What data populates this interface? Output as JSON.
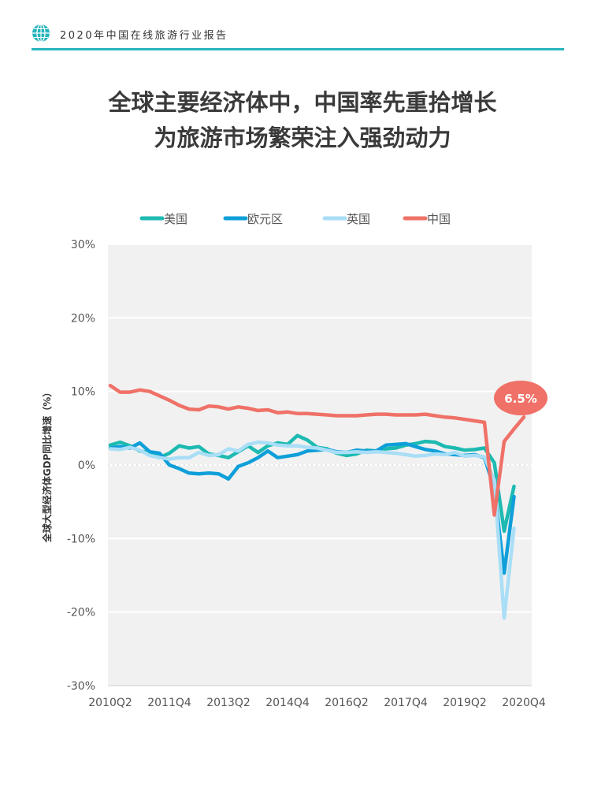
{
  "header": {
    "report_title": "2020年中国在线旅游行业报告",
    "icon": "globe-icon",
    "rule_color": "#27b5bd"
  },
  "title": {
    "line1": "全球主要经济体中，中国率先重拾增长",
    "line2": "为旅游市场繁荣注入强劲动力"
  },
  "chart_data": {
    "type": "line",
    "ylabel": "全球大型经济体GDP同比增速（%）",
    "ylim": [
      -30,
      30
    ],
    "yticks": [
      30,
      20,
      10,
      0,
      -10,
      -20,
      -30
    ],
    "ytick_labels": [
      "30%",
      "20%",
      "10%",
      "0%",
      "-10%",
      "-20%",
      "-30%"
    ],
    "x_quarters": [
      "2010Q2",
      "2010Q3",
      "2010Q4",
      "2011Q1",
      "2011Q2",
      "2011Q3",
      "2011Q4",
      "2012Q1",
      "2012Q2",
      "2012Q3",
      "2012Q4",
      "2013Q1",
      "2013Q2",
      "2013Q3",
      "2013Q4",
      "2014Q1",
      "2014Q2",
      "2014Q3",
      "2014Q4",
      "2015Q1",
      "2015Q2",
      "2015Q3",
      "2015Q4",
      "2016Q1",
      "2016Q2",
      "2016Q3",
      "2016Q4",
      "2017Q1",
      "2017Q2",
      "2017Q3",
      "2017Q4",
      "2018Q1",
      "2018Q2",
      "2018Q3",
      "2018Q4",
      "2019Q1",
      "2019Q2",
      "2019Q3",
      "2019Q4",
      "2020Q1",
      "2020Q2",
      "2020Q3",
      "2020Q4"
    ],
    "xtick_labels": [
      "2010Q2",
      "2011Q4",
      "2013Q2",
      "2014Q4",
      "2016Q2",
      "2017Q4",
      "2019Q2",
      "2020Q4"
    ],
    "xtick_quarters": [
      "2010Q2",
      "2011Q4",
      "2013Q2",
      "2014Q4",
      "2016Q2",
      "2017Q4",
      "2019Q2",
      "2020Q4"
    ],
    "legend_position": "top",
    "grid": "horizontal",
    "background": "#f1f1f1",
    "series": [
      {
        "name": "美国",
        "color": "#1dbab1",
        "end_quarter": "2020Q3",
        "values": [
          2.7,
          3.1,
          2.6,
          1.9,
          1.7,
          1.0,
          1.6,
          2.6,
          2.3,
          2.5,
          1.5,
          1.3,
          1.0,
          1.8,
          2.6,
          1.7,
          2.6,
          3.0,
          2.8,
          4.0,
          3.4,
          2.4,
          2.2,
          1.6,
          1.3,
          1.5,
          2.0,
          1.9,
          2.2,
          2.3,
          2.7,
          2.9,
          3.2,
          3.1,
          2.5,
          2.3,
          2.0,
          2.1,
          2.3,
          0.3,
          -9.0,
          -2.9
        ]
      },
      {
        "name": "欧元区",
        "color": "#0f9fd9",
        "end_quarter": "2020Q3",
        "values": [
          2.3,
          2.5,
          2.3,
          3.0,
          1.8,
          1.6,
          0.0,
          -0.5,
          -1.1,
          -1.2,
          -1.1,
          -1.2,
          -1.9,
          -0.2,
          0.3,
          1.0,
          1.9,
          1.0,
          1.2,
          1.4,
          1.9,
          2.0,
          2.1,
          1.8,
          1.7,
          2.0,
          1.9,
          1.9,
          2.7,
          2.8,
          2.9,
          2.5,
          2.1,
          1.9,
          1.5,
          1.4,
          1.3,
          1.4,
          1.0,
          -3.2,
          -14.7,
          -4.3
        ]
      },
      {
        "name": "英国",
        "color": "#a9def6",
        "end_quarter": "2020Q3",
        "values": [
          2.2,
          2.1,
          2.4,
          2.0,
          1.3,
          1.0,
          0.8,
          1.0,
          1.0,
          1.7,
          1.3,
          1.4,
          2.2,
          1.9,
          2.8,
          3.1,
          3.0,
          2.7,
          2.6,
          2.6,
          2.4,
          2.3,
          2.0,
          1.7,
          1.7,
          1.8,
          1.7,
          1.8,
          1.7,
          1.6,
          1.4,
          1.2,
          1.3,
          1.5,
          1.4,
          1.7,
          1.2,
          1.3,
          1.1,
          -2.1,
          -20.8,
          -8.6
        ]
      },
      {
        "name": "中国",
        "color": "#ef7167",
        "end_quarter": "2020Q4",
        "values": [
          10.8,
          9.9,
          9.9,
          10.2,
          10.0,
          9.4,
          8.8,
          8.1,
          7.6,
          7.5,
          8.0,
          7.9,
          7.6,
          7.9,
          7.7,
          7.4,
          7.5,
          7.1,
          7.2,
          7.0,
          7.0,
          6.9,
          6.8,
          6.7,
          6.7,
          6.7,
          6.8,
          6.9,
          6.9,
          6.8,
          6.8,
          6.8,
          6.9,
          6.7,
          6.5,
          6.4,
          6.2,
          6.0,
          5.8,
          -6.8,
          3.2,
          4.9,
          6.5
        ]
      }
    ],
    "annotation": {
      "text": "6.5%",
      "series": "中国",
      "quarter": "2020Q4",
      "color": "#ef7167"
    }
  }
}
